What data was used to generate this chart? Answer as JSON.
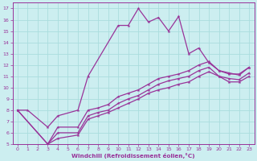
{
  "background_color": "#cceef0",
  "grid_color": "#aadddd",
  "line_color": "#993399",
  "xlabel": "Windchill (Refroidissement éolien,°C)",
  "xlim": [
    -0.5,
    23.5
  ],
  "ylim": [
    5,
    17.5
  ],
  "xticks": [
    0,
    1,
    2,
    3,
    4,
    5,
    6,
    7,
    8,
    9,
    10,
    11,
    12,
    13,
    14,
    15,
    16,
    17,
    18,
    19,
    20,
    21,
    22,
    23
  ],
  "yticks": [
    5,
    6,
    7,
    8,
    9,
    10,
    11,
    12,
    13,
    14,
    15,
    16,
    17
  ],
  "line1_x": [
    0,
    1,
    3,
    4,
    6,
    7,
    10,
    11,
    12,
    13,
    14,
    15,
    16,
    17,
    18,
    19,
    20,
    21,
    22,
    23
  ],
  "line1_y": [
    8,
    8,
    6.5,
    7.5,
    8.0,
    11.0,
    15.5,
    15.5,
    17.0,
    15.8,
    16.2,
    15.0,
    16.3,
    13.0,
    13.5,
    12.2,
    11.5,
    11.2,
    11.2,
    11.8
  ],
  "line2_x": [
    0,
    3,
    4,
    6,
    7,
    8,
    9,
    10,
    11,
    12,
    13,
    14,
    15,
    16,
    17,
    18,
    19,
    20,
    21,
    22,
    23
  ],
  "line2_y": [
    8.0,
    5.0,
    6.5,
    6.5,
    8.0,
    8.2,
    8.5,
    9.2,
    9.5,
    9.8,
    10.3,
    10.8,
    11.0,
    11.2,
    11.5,
    12.0,
    12.3,
    11.5,
    11.3,
    11.1,
    11.8
  ],
  "line3_x": [
    0,
    3,
    4,
    6,
    7,
    8,
    9,
    10,
    11,
    12,
    13,
    14,
    15,
    16,
    17,
    18,
    19,
    20,
    21,
    22,
    23
  ],
  "line3_y": [
    8.0,
    5.0,
    6.0,
    6.0,
    7.5,
    7.8,
    8.0,
    8.6,
    9.0,
    9.3,
    9.8,
    10.3,
    10.6,
    10.8,
    11.0,
    11.5,
    11.8,
    11.0,
    10.8,
    10.7,
    11.3
  ],
  "line4_x": [
    3,
    4,
    6,
    7,
    8,
    9,
    10,
    11,
    12,
    13,
    14,
    15,
    16,
    17,
    18,
    19,
    20,
    21,
    22,
    23
  ],
  "line4_y": [
    5.0,
    5.5,
    5.8,
    7.2,
    7.5,
    7.8,
    8.2,
    8.6,
    9.0,
    9.5,
    9.8,
    10.0,
    10.3,
    10.5,
    11.0,
    11.4,
    11.0,
    10.5,
    10.5,
    11.0
  ]
}
